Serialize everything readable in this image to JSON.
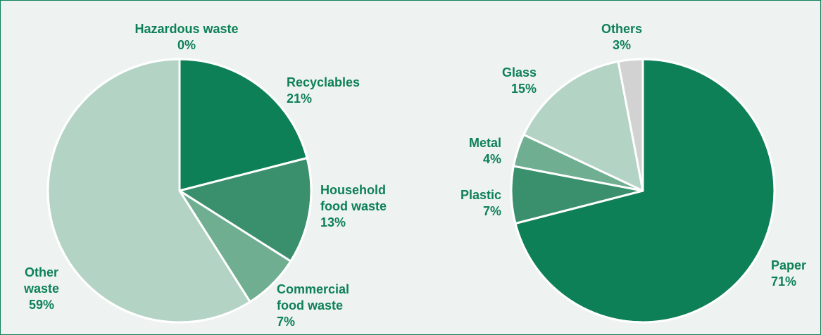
{
  "colors": {
    "dark_green": "#0e8058",
    "mid_green": "#3a8f6c",
    "light_green": "#6fae91",
    "pale_green": "#b3d3c5",
    "grey": "#d2d2d2",
    "label_green": "#0e8058",
    "background": "#eef3f1"
  },
  "chart_data": [
    {
      "type": "pie",
      "slices": [
        {
          "name": "Hazardous waste",
          "lines": [
            "Hazardous waste"
          ],
          "value": 0,
          "label": "0%",
          "color": "#0e8058"
        },
        {
          "name": "Recyclables",
          "lines": [
            "Recyclables"
          ],
          "value": 21,
          "label": "21%",
          "color": "#0e8058"
        },
        {
          "name": "Household food waste",
          "lines": [
            "Household",
            "food waste"
          ],
          "value": 13,
          "label": "13%",
          "color": "#3a8f6c"
        },
        {
          "name": "Commercial food waste",
          "lines": [
            "Commercial",
            "food waste"
          ],
          "value": 7,
          "label": "7%",
          "color": "#6fae91"
        },
        {
          "name": "Other waste",
          "lines": [
            "Other",
            "waste"
          ],
          "value": 59,
          "label": "59%",
          "color": "#b3d3c5"
        }
      ]
    },
    {
      "type": "pie",
      "slices": [
        {
          "name": "Paper",
          "lines": [
            "Paper"
          ],
          "value": 71,
          "label": "71%",
          "color": "#0e8058"
        },
        {
          "name": "Plastic",
          "lines": [
            "Plastic"
          ],
          "value": 7,
          "label": "7%",
          "color": "#3a8f6c"
        },
        {
          "name": "Metal",
          "lines": [
            "Metal"
          ],
          "value": 4,
          "label": "4%",
          "color": "#6fae91"
        },
        {
          "name": "Glass",
          "lines": [
            "Glass"
          ],
          "value": 15,
          "label": "15%",
          "color": "#b3d3c5"
        },
        {
          "name": "Others",
          "lines": [
            "Others"
          ],
          "value": 3,
          "label": "3%",
          "color": "#d2d2d2"
        }
      ]
    }
  ]
}
